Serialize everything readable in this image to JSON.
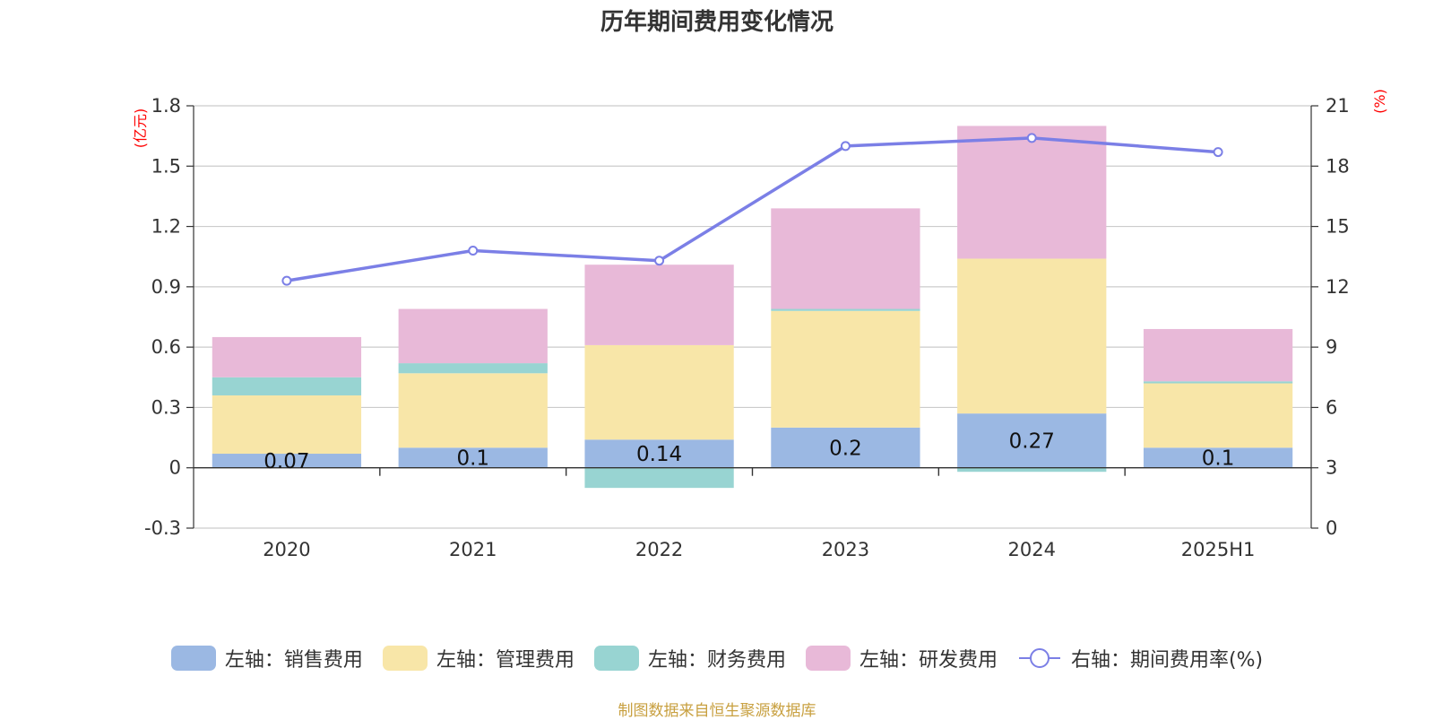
{
  "chart_data": {
    "type": "bar",
    "title": "历年期间费用变化情况",
    "categories": [
      "2020",
      "2021",
      "2022",
      "2023",
      "2024",
      "2025H1"
    ],
    "y_left": {
      "unit": "(亿元)",
      "ylim": [
        -0.3,
        1.8
      ],
      "ticks": [
        "-0.3",
        "0",
        "0.3",
        "0.6",
        "0.9",
        "1.2",
        "1.5",
        "1.8"
      ]
    },
    "y_right": {
      "unit": "(%)",
      "ylim": [
        0,
        21
      ],
      "ticks": [
        "0",
        "3",
        "6",
        "9",
        "12",
        "15",
        "18",
        "21"
      ]
    },
    "series": [
      {
        "name": "左轴：销售费用",
        "type": "bar",
        "stack": true,
        "color": "#9bb8e3",
        "values": [
          0.07,
          0.1,
          0.14,
          0.2,
          0.27,
          0.1
        ],
        "labels": [
          "0.07",
          "0.1",
          "0.14",
          "0.2",
          "0.27",
          "0.1"
        ]
      },
      {
        "name": "左轴：管理费用",
        "type": "bar",
        "stack": true,
        "color": "#f8e6a8",
        "values": [
          0.29,
          0.37,
          0.47,
          0.58,
          0.77,
          0.32
        ]
      },
      {
        "name": "左轴：财务费用",
        "type": "bar",
        "stack": true,
        "color": "#98d4d2",
        "values": [
          0.09,
          0.05,
          -0.1,
          0.01,
          -0.02,
          0.01
        ]
      },
      {
        "name": "左轴：研发费用",
        "type": "bar",
        "stack": true,
        "color": "#e8b9d8",
        "values": [
          0.2,
          0.27,
          0.4,
          0.5,
          0.66,
          0.26
        ]
      },
      {
        "name": "右轴：期间费用率(%)",
        "type": "line",
        "axis": "right",
        "color": "#7b7fe6",
        "values": [
          12.3,
          13.8,
          13.3,
          19.0,
          19.4,
          18.7
        ]
      }
    ],
    "grid": true,
    "legend_position": "bottom"
  },
  "source_note": "制图数据来自恒生聚源数据库"
}
